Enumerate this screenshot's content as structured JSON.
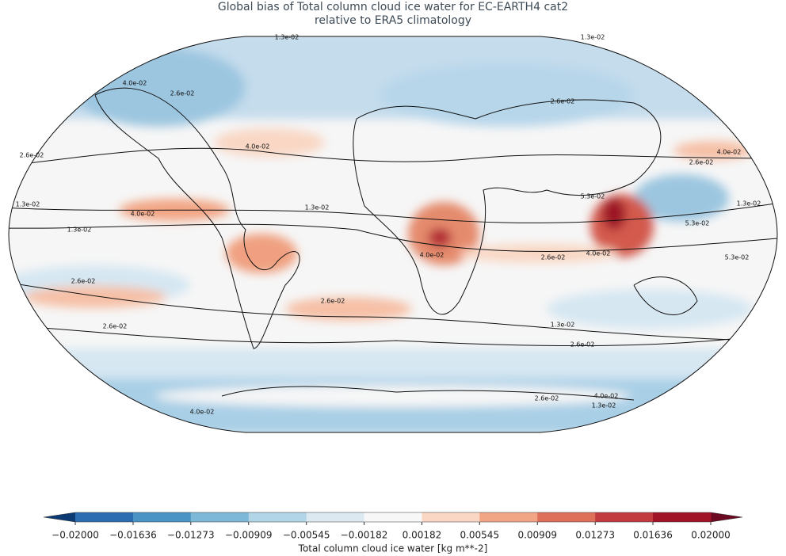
{
  "title": [
    "Global bias of Total column cloud ice water for EC-EARTH4 cat2",
    "relative to ERA5 climatology"
  ],
  "contour_levels": [
    {
      "value": 0.013,
      "label": "1.3e-02"
    },
    {
      "value": 0.026,
      "label": "2.6e-02"
    },
    {
      "value": 0.04,
      "label": "4.0e-02"
    },
    {
      "value": 0.053,
      "label": "5.3e-02"
    }
  ],
  "colorbar": {
    "label": "Total column cloud ice water [kg m**-2]",
    "ticks": [
      {
        "value": -0.02,
        "label": "−0.02000"
      },
      {
        "value": -0.01636,
        "label": "−0.01636"
      },
      {
        "value": -0.01273,
        "label": "−0.01273"
      },
      {
        "value": -0.00909,
        "label": "−0.00909"
      },
      {
        "value": -0.00545,
        "label": "−0.00545"
      },
      {
        "value": -0.00182,
        "label": "−0.00182"
      },
      {
        "value": 0.00182,
        "label": "0.00182"
      },
      {
        "value": 0.00545,
        "label": "0.00545"
      },
      {
        "value": 0.00909,
        "label": "0.00909"
      },
      {
        "value": 0.01273,
        "label": "0.01273"
      },
      {
        "value": 0.01636,
        "label": "0.01636"
      },
      {
        "value": 0.02,
        "label": "0.02000"
      }
    ],
    "colors": [
      "#2c6cb0",
      "#4b93c5",
      "#7db8d8",
      "#b3d5e8",
      "#dde9f1",
      "#f7f7f7",
      "#f9d7c4",
      "#f2a584",
      "#de7059",
      "#c23b3e",
      "#a11428"
    ],
    "under_color": "#0b3b72",
    "over_color": "#6a0921"
  }
}
